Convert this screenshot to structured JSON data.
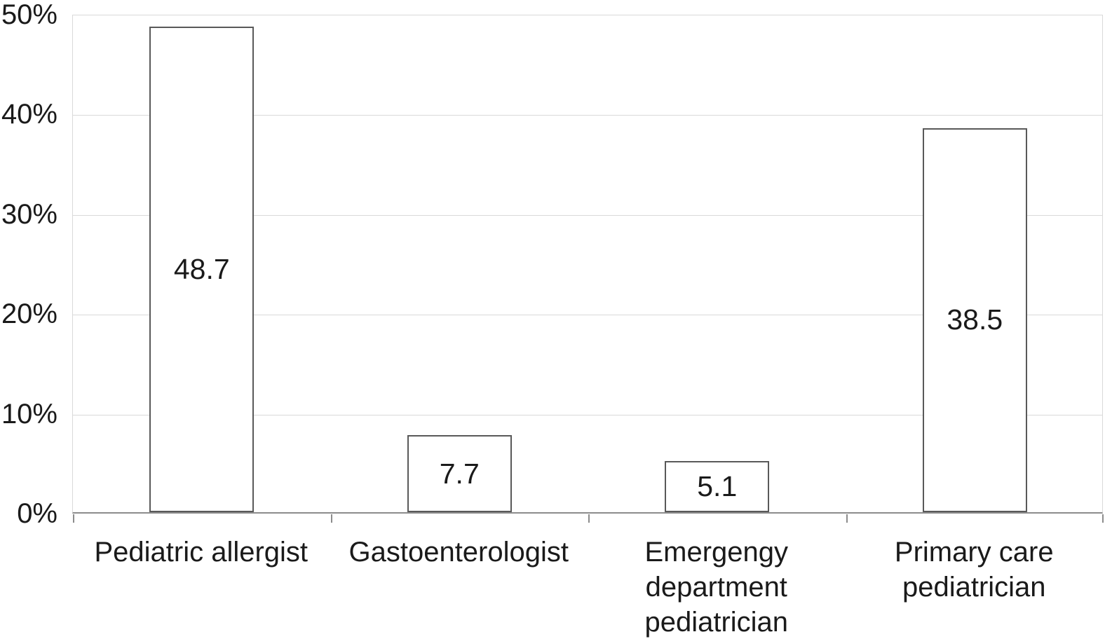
{
  "chart_data": {
    "type": "bar",
    "title": "",
    "xlabel": "",
    "ylabel": "",
    "categories": [
      "Pediatric allergist",
      "Gastoenterologist",
      "Emergengy department pediatrician",
      "Primary care pediatrician"
    ],
    "category_lines": [
      [
        "Pediatric allergist"
      ],
      [
        "Gastoenterologist"
      ],
      [
        "Emergengy",
        "department",
        "pediatrician"
      ],
      [
        "Primary care",
        "pediatrician"
      ]
    ],
    "values": [
      48.7,
      7.7,
      5.1,
      38.5
    ],
    "bar_labels": [
      "48.7",
      "7.7",
      "5.1",
      "38.5"
    ],
    "bar_label_position": "inside-center",
    "y_tick_labels": [
      "50%",
      "40%",
      "30%",
      "20%",
      "10%",
      "0%"
    ],
    "y_tick_values": [
      50,
      40,
      30,
      20,
      10,
      0
    ],
    "ylim": [
      0,
      50
    ],
    "grid": "horizontal-on",
    "legend": "none"
  },
  "colors": {
    "bar_fill": "#ffffff",
    "bar_border": "#595959",
    "gridline": "#d9d9d9",
    "axis_line": "#8c8c8c",
    "text": "#1a1a1a",
    "background": "#ffffff"
  }
}
